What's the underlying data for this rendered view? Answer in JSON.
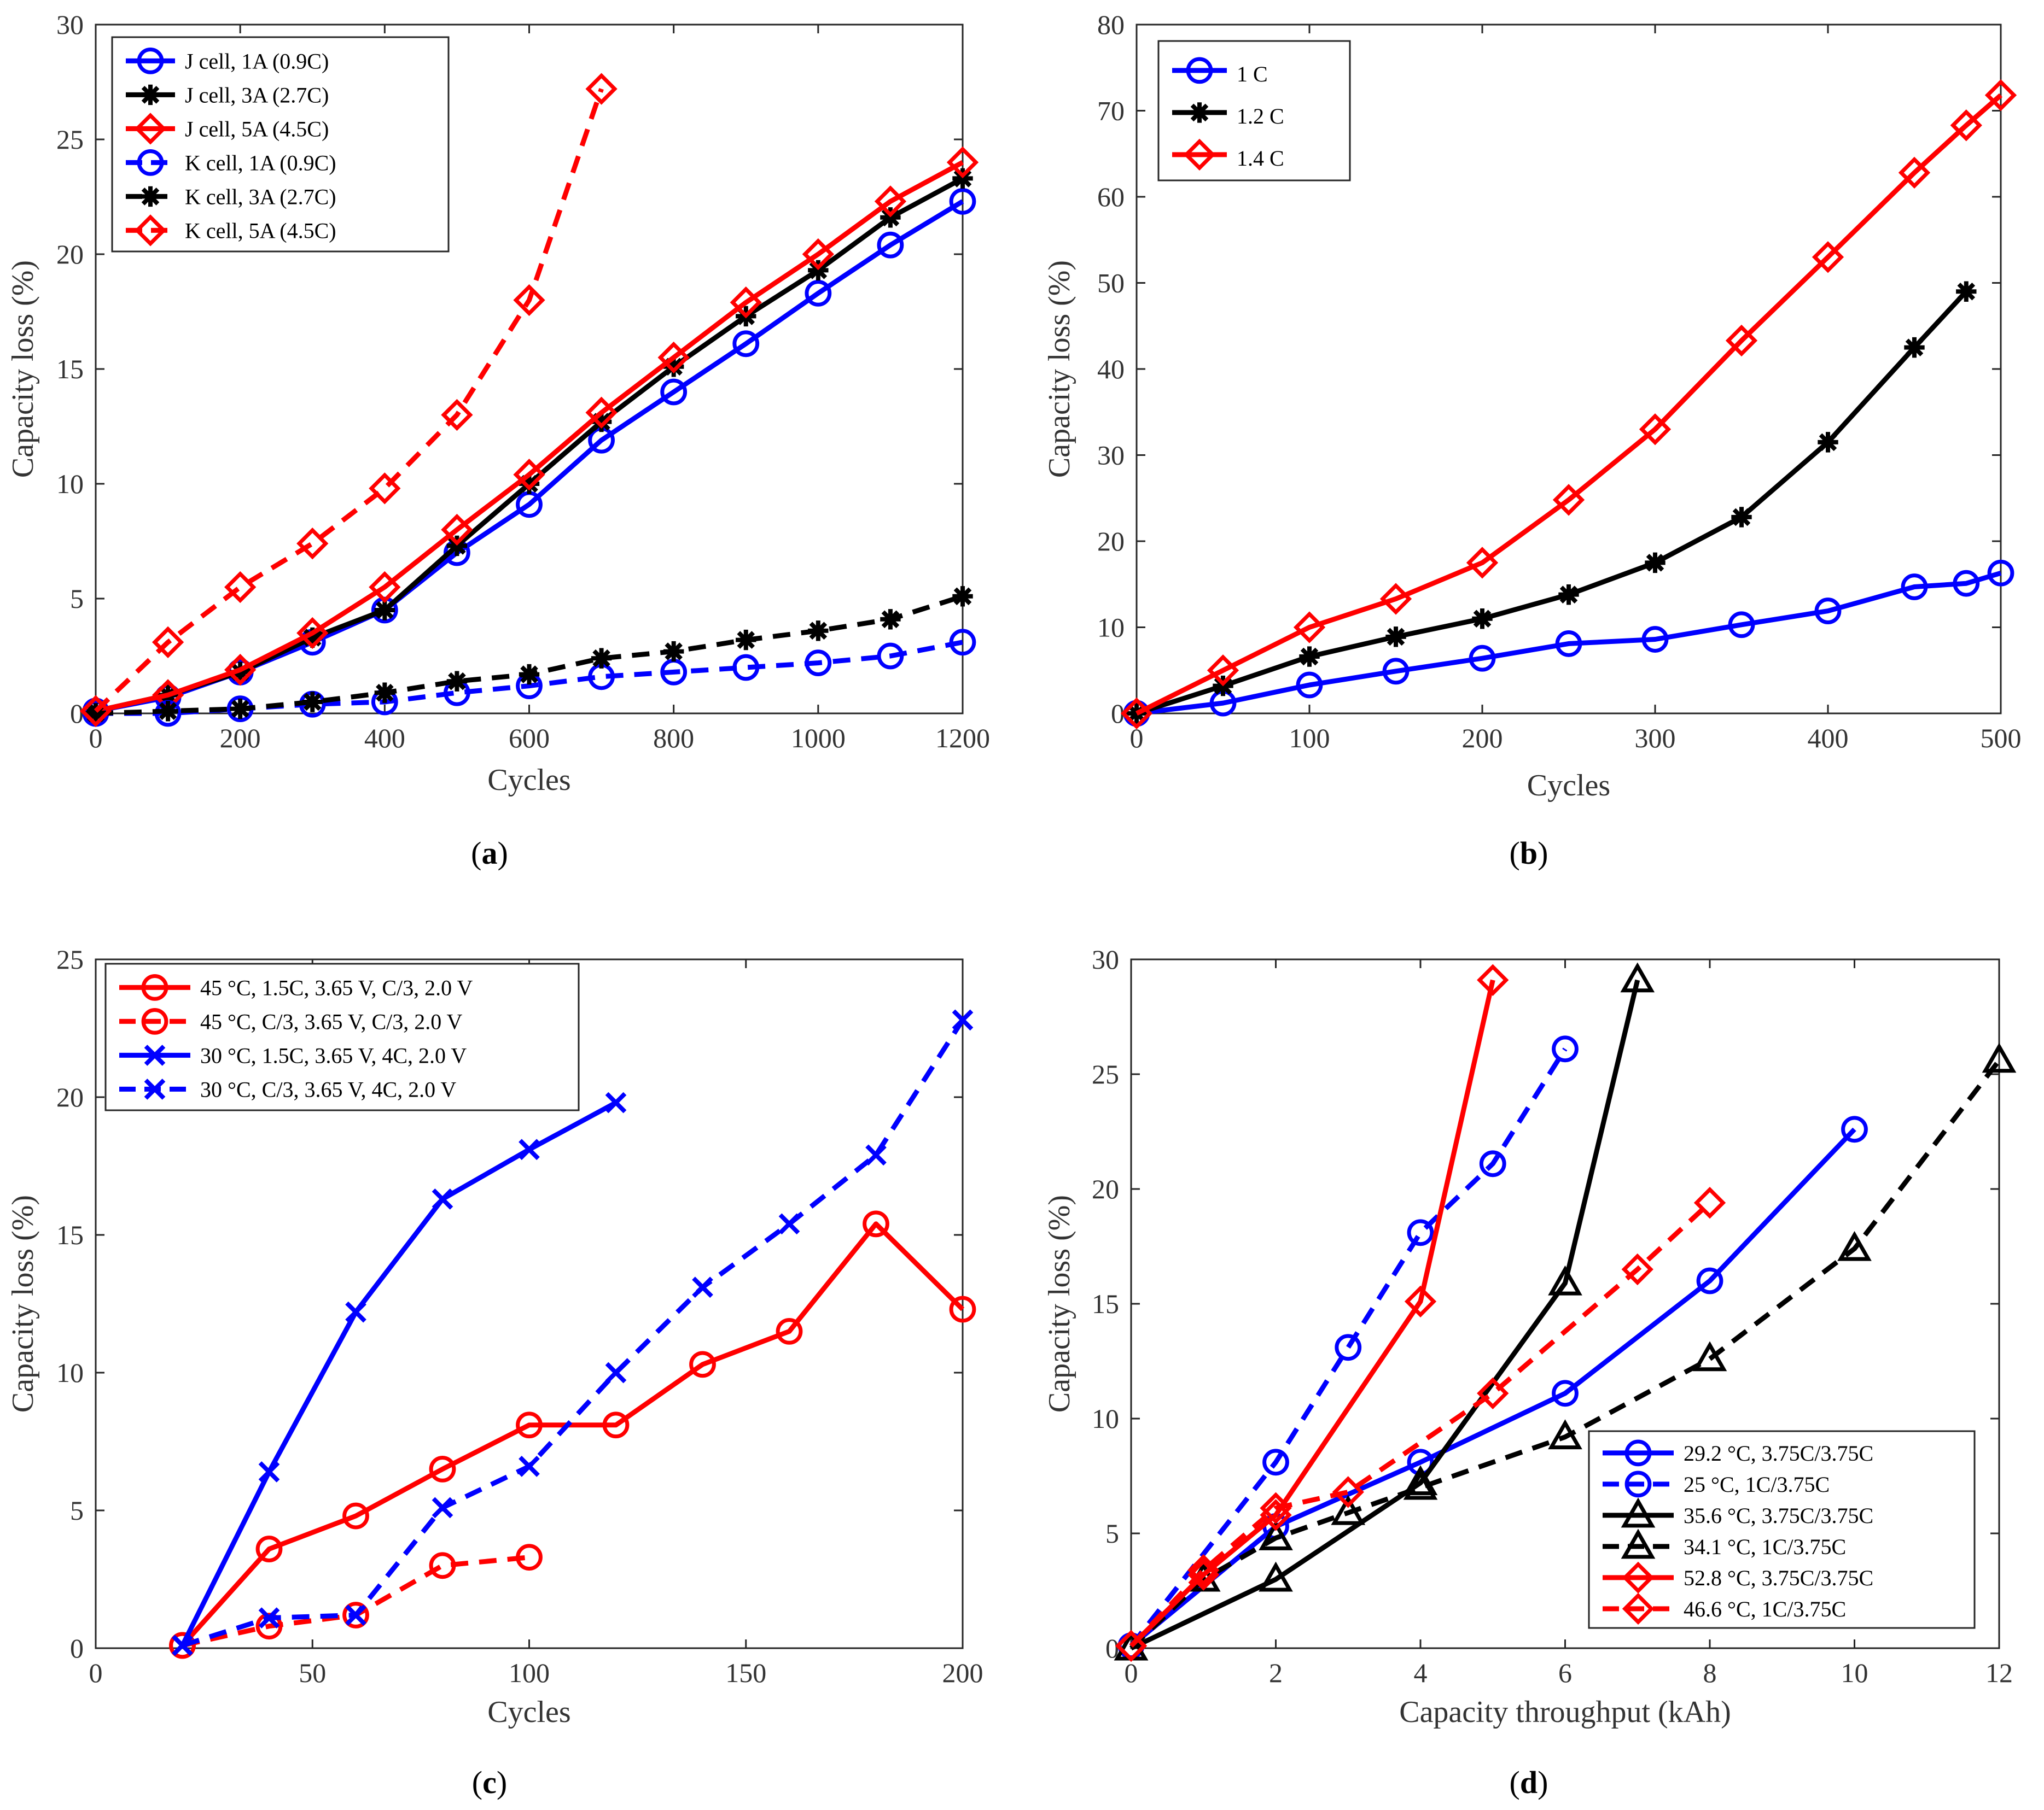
{
  "figure": {
    "panels": [
      {
        "id": "a",
        "label_open": "(",
        "label_letter": "a",
        "label_close": ")"
      },
      {
        "id": "b",
        "label_open": "(",
        "label_letter": "b",
        "label_close": ")"
      },
      {
        "id": "c",
        "label_open": "(",
        "label_letter": "c",
        "label_close": ")"
      },
      {
        "id": "d",
        "label_open": "(",
        "label_letter": "d",
        "label_close": ")"
      }
    ]
  },
  "colors": {
    "blue": "#0000ff",
    "black": "#000000",
    "red": "#ff0000"
  },
  "chart_data": [
    {
      "type": "line",
      "panel": "a",
      "title": "",
      "xlabel": "Cycles",
      "ylabel": "Capacity loss (%)",
      "xlim": [
        0,
        1200
      ],
      "ylim": [
        0,
        30
      ],
      "xticks": [
        0,
        200,
        400,
        600,
        800,
        1000,
        1200
      ],
      "yticks": [
        0,
        5,
        10,
        15,
        20,
        25,
        30
      ],
      "legend_position": "top-left",
      "series": [
        {
          "name": "J cell, 1A (0.9C)",
          "color": "blue",
          "dash": "solid",
          "marker": "circle",
          "x": [
            0,
            100,
            200,
            300,
            400,
            500,
            600,
            700,
            800,
            900,
            1000,
            1100,
            1200
          ],
          "y": [
            0.1,
            0.7,
            1.8,
            3.1,
            4.5,
            7.0,
            9.1,
            11.9,
            14.0,
            16.1,
            18.3,
            20.4,
            22.3
          ]
        },
        {
          "name": "J cell, 3A (2.7C)",
          "color": "black",
          "dash": "solid",
          "marker": "asterisk",
          "x": [
            0,
            100,
            200,
            300,
            400,
            500,
            600,
            700,
            800,
            900,
            1000,
            1100,
            1200
          ],
          "y": [
            0.1,
            0.8,
            1.8,
            3.3,
            4.5,
            7.3,
            10.0,
            12.7,
            15.1,
            17.3,
            19.3,
            21.6,
            23.3
          ]
        },
        {
          "name": "J cell, 5A (4.5C)",
          "color": "red",
          "dash": "solid",
          "marker": "diamond",
          "x": [
            0,
            100,
            200,
            300,
            400,
            500,
            600,
            700,
            800,
            900,
            1000,
            1100,
            1200
          ],
          "y": [
            0.1,
            0.8,
            1.9,
            3.5,
            5.5,
            8.0,
            10.4,
            13.1,
            15.5,
            17.9,
            20.0,
            22.3,
            24.0
          ]
        },
        {
          "name": "K cell, 1A (0.9C)",
          "color": "blue",
          "dash": "dash",
          "marker": "circle",
          "x": [
            0,
            100,
            200,
            300,
            400,
            500,
            600,
            700,
            800,
            900,
            1000,
            1100,
            1200
          ],
          "y": [
            0.0,
            0.0,
            0.2,
            0.4,
            0.5,
            0.9,
            1.2,
            1.6,
            1.8,
            2.0,
            2.2,
            2.5,
            3.1
          ]
        },
        {
          "name": "K cell, 3A (2.7C)",
          "color": "black",
          "dash": "dash",
          "marker": "asterisk",
          "x": [
            0,
            100,
            200,
            300,
            400,
            500,
            600,
            700,
            800,
            900,
            1000,
            1100,
            1200
          ],
          "y": [
            0.0,
            0.1,
            0.2,
            0.5,
            0.9,
            1.4,
            1.7,
            2.4,
            2.7,
            3.2,
            3.6,
            4.1,
            5.1
          ]
        },
        {
          "name": "K cell, 5A (4.5C)",
          "color": "red",
          "dash": "dash",
          "marker": "diamond",
          "x": [
            0,
            100,
            200,
            300,
            400,
            500,
            600,
            700
          ],
          "y": [
            0.1,
            3.1,
            5.5,
            7.4,
            9.8,
            13.0,
            18.0,
            27.2
          ]
        }
      ]
    },
    {
      "type": "line",
      "panel": "b",
      "title": "",
      "xlabel": "Cycles",
      "ylabel": "Capacity loss (%)",
      "xlim": [
        0,
        500
      ],
      "ylim": [
        0,
        80
      ],
      "xticks": [
        0,
        100,
        200,
        300,
        400,
        500
      ],
      "yticks": [
        0,
        10,
        20,
        30,
        40,
        50,
        60,
        70,
        80
      ],
      "legend_position": "top-left",
      "series": [
        {
          "name": "1 C",
          "color": "blue",
          "dash": "solid",
          "marker": "circle",
          "x": [
            0,
            50,
            100,
            150,
            200,
            250,
            300,
            350,
            400,
            450,
            480,
            500
          ],
          "y": [
            0,
            1.2,
            3.3,
            4.9,
            6.4,
            8.1,
            8.6,
            10.3,
            11.9,
            14.7,
            15.1,
            16.3
          ]
        },
        {
          "name": "1.2 C",
          "color": "black",
          "dash": "solid",
          "marker": "asterisk",
          "x": [
            0,
            50,
            100,
            150,
            200,
            250,
            300,
            350,
            400,
            450,
            480
          ],
          "y": [
            0,
            3.2,
            6.6,
            8.9,
            11.0,
            13.8,
            17.5,
            22.8,
            31.5,
            42.5,
            49.0
          ]
        },
        {
          "name": "1.4 C",
          "color": "red",
          "dash": "solid",
          "marker": "diamond",
          "x": [
            0,
            50,
            100,
            150,
            200,
            250,
            300,
            350,
            400,
            450,
            480,
            500
          ],
          "y": [
            0,
            5.0,
            10.0,
            13.3,
            17.5,
            24.8,
            33.0,
            43.3,
            53.0,
            62.8,
            68.3,
            71.8
          ]
        }
      ]
    },
    {
      "type": "line",
      "panel": "c",
      "title": "",
      "xlabel": "Cycles",
      "ylabel": "Capacity loss (%)",
      "xlim": [
        0,
        200
      ],
      "ylim": [
        0,
        25
      ],
      "xticks": [
        0,
        50,
        100,
        150,
        200
      ],
      "yticks": [
        0,
        5,
        10,
        15,
        20,
        25
      ],
      "legend_position": "top-left",
      "series": [
        {
          "name": "45 °C, 1.5C, 3.65 V, C/3, 2.0 V",
          "color": "red",
          "dash": "solid",
          "marker": "circle",
          "x": [
            20,
            40,
            60,
            80,
            100,
            120,
            140,
            160,
            180,
            200
          ],
          "y": [
            0.1,
            3.6,
            4.8,
            6.5,
            8.1,
            8.1,
            10.3,
            11.5,
            15.4,
            12.3
          ]
        },
        {
          "name": "45 °C, C/3, 3.65 V, C/3, 2.0 V",
          "color": "red",
          "dash": "dash",
          "marker": "circle",
          "x": [
            20,
            40,
            60,
            80,
            100
          ],
          "y": [
            0.1,
            0.8,
            1.2,
            3.0,
            3.3
          ]
        },
        {
          "name": "30 °C, 1.5C, 3.65 V, 4C, 2.0 V",
          "color": "blue",
          "dash": "solid",
          "marker": "x",
          "x": [
            20,
            40,
            60,
            80,
            100,
            120
          ],
          "y": [
            0.1,
            6.4,
            12.2,
            16.3,
            18.1,
            19.8
          ]
        },
        {
          "name": "30 °C, C/3, 3.65 V, 4C, 2.0 V",
          "color": "blue",
          "dash": "dash",
          "marker": "x",
          "x": [
            20,
            40,
            60,
            80,
            100,
            120,
            140,
            160,
            180,
            200
          ],
          "y": [
            0.1,
            1.1,
            1.2,
            5.1,
            6.6,
            10.0,
            13.1,
            15.4,
            17.9,
            22.8
          ]
        }
      ]
    },
    {
      "type": "line",
      "panel": "d",
      "title": "",
      "xlabel": "Capacity throughput (kAh)",
      "ylabel": "Capacity loss (%)",
      "xlim": [
        0,
        12
      ],
      "ylim": [
        0,
        30
      ],
      "xticks": [
        0,
        2,
        4,
        6,
        8,
        10,
        12
      ],
      "yticks": [
        0,
        5,
        10,
        15,
        20,
        25,
        30
      ],
      "legend_position": "bottom-right",
      "series": [
        {
          "name": "29.2 °C, 3.75C/3.75C",
          "color": "blue",
          "dash": "solid",
          "marker": "circle",
          "x": [
            0,
            2,
            4,
            6,
            8,
            10
          ],
          "y": [
            0.1,
            5.3,
            8.1,
            11.1,
            16.0,
            22.6
          ]
        },
        {
          "name": "25 °C, 1C/3.75C",
          "color": "blue",
          "dash": "dash",
          "marker": "circle",
          "x": [
            0,
            2,
            3,
            4,
            5,
            6
          ],
          "y": [
            0.1,
            8.1,
            13.1,
            18.1,
            21.1,
            26.1
          ]
        },
        {
          "name": "35.6 °C, 3.75C/3.75C",
          "color": "black",
          "dash": "solid",
          "marker": "triangle",
          "x": [
            0,
            2,
            4,
            6,
            7
          ],
          "y": [
            0.0,
            3.0,
            7.2,
            15.9,
            29.1
          ]
        },
        {
          "name": "34.1 °C, 1C/3.75C",
          "color": "black",
          "dash": "dash",
          "marker": "triangle",
          "x": [
            0,
            1,
            2,
            3,
            4,
            6,
            8,
            10,
            12
          ],
          "y": [
            0.0,
            3.0,
            4.8,
            5.9,
            7.0,
            9.2,
            12.6,
            17.4,
            25.6
          ]
        },
        {
          "name": "52.8 °C, 3.75C/3.75C",
          "color": "red",
          "dash": "solid",
          "marker": "diamond",
          "x": [
            0,
            1,
            2,
            4,
            5
          ],
          "y": [
            0.1,
            3.2,
            5.8,
            15.1,
            29.1
          ]
        },
        {
          "name": "46.6 °C, 1C/3.75C",
          "color": "red",
          "dash": "dash",
          "marker": "diamond",
          "x": [
            0,
            1,
            2,
            3,
            5,
            7,
            8
          ],
          "y": [
            0.1,
            3.4,
            6.1,
            6.8,
            11.1,
            16.5,
            19.4
          ]
        }
      ]
    }
  ]
}
